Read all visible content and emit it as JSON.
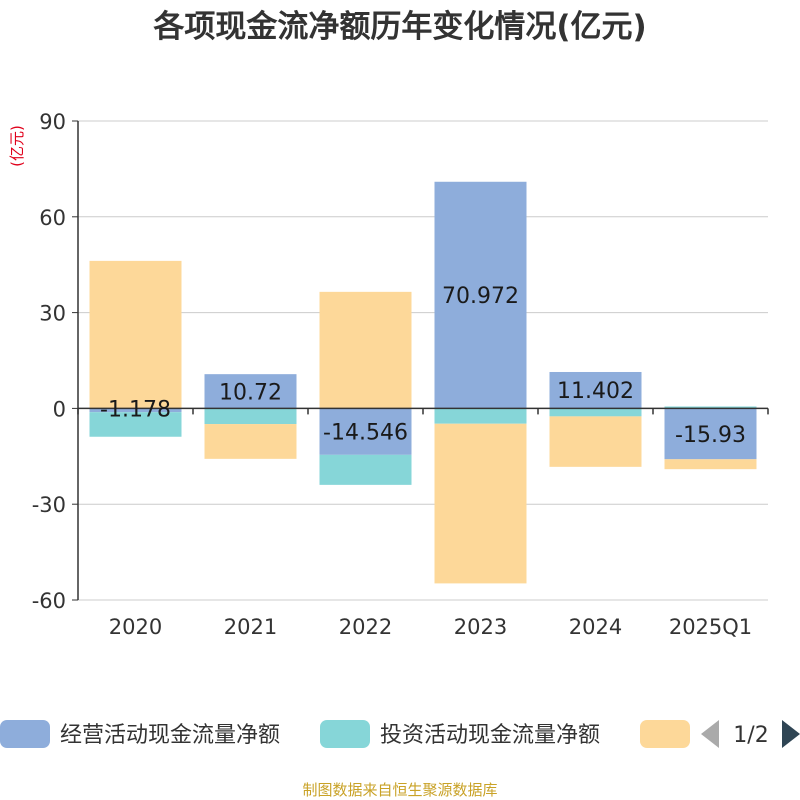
{
  "chart_data": {
    "type": "bar",
    "title": "各项现金流净额历年变化情况(亿元)",
    "unit_label": "(亿元)",
    "categories": [
      "2020",
      "2021",
      "2022",
      "2023",
      "2024",
      "2025Q1"
    ],
    "ylim": [
      -60,
      90
    ],
    "yticks": [
      90,
      60,
      30,
      0,
      -30,
      -60
    ],
    "grid": true,
    "series": [
      {
        "name": "经营活动现金流量净额",
        "color": "#8eaddb",
        "values": [
          -1.178,
          10.72,
          -14.546,
          70.972,
          11.402,
          -15.93
        ],
        "labels": [
          "-1.178",
          "10.72",
          "-14.546",
          "70.972",
          "11.402",
          "-15.93"
        ]
      },
      {
        "name": "投资活动现金流量净额",
        "color": "#86d6d8",
        "values": [
          -7.7,
          -4.9,
          -9.4,
          -4.8,
          -2.5,
          0.6
        ]
      },
      {
        "name": "",
        "color": "#fdd899",
        "values": [
          46.2,
          -10.9,
          36.5,
          -50.0,
          -15.8,
          -3.1
        ]
      }
    ],
    "legend": {
      "items": [
        "经营活动现金流量净额",
        "投资活动现金流量净额",
        ""
      ],
      "page": "1/2"
    },
    "source": "制图数据来自恒生聚源数据库"
  }
}
